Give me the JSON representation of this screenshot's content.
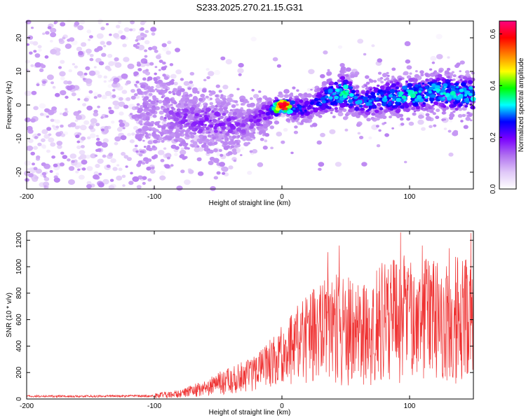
{
  "title": "S233.2025.270.21.15.G31",
  "chart_data": [
    {
      "type": "heatmap",
      "xlabel": "Height of straight line (km)",
      "ylabel": "Frequency (Hz)",
      "xlim": [
        -200,
        150
      ],
      "ylim": [
        -25,
        25
      ],
      "xticks": [
        -200,
        -100,
        0,
        100
      ],
      "yticks": [
        -20,
        -10,
        0,
        10,
        20
      ],
      "colorbar": {
        "label": "Normalized spectral amplitude",
        "range": [
          0,
          0.65
        ],
        "ticks": [
          0.0,
          0.2,
          0.4,
          0.6
        ],
        "colors": [
          "#ffffff",
          "#e0c8f8",
          "#b070f0",
          "#7a00ff",
          "#0000ff",
          "#00ffff",
          "#00ff00",
          "#ffff00",
          "#ff8000",
          "#ff0000",
          "#ff0080"
        ]
      },
      "ridge": {
        "points": [
          {
            "x": -200,
            "y": 3,
            "halfwidth": 25,
            "amp": 0.09
          },
          {
            "x": -150,
            "y": 2,
            "halfwidth": 25,
            "amp": 0.09
          },
          {
            "x": -100,
            "y": -1,
            "halfwidth": 14,
            "amp": 0.13
          },
          {
            "x": -80,
            "y": -4,
            "halfwidth": 9,
            "amp": 0.17
          },
          {
            "x": -50,
            "y": -5,
            "halfwidth": 8,
            "amp": 0.19
          },
          {
            "x": -30,
            "y": -6,
            "halfwidth": 6,
            "amp": 0.16
          },
          {
            "x": -10,
            "y": -2,
            "halfwidth": 5,
            "amp": 0.21
          },
          {
            "x": 0,
            "y": 0,
            "halfwidth": 2,
            "amp": 0.62
          },
          {
            "x": 10,
            "y": -1,
            "halfwidth": 4,
            "amp": 0.3
          },
          {
            "x": 20,
            "y": -1,
            "halfwidth": 4,
            "amp": 0.24
          },
          {
            "x": 40,
            "y": 3,
            "halfwidth": 6,
            "amp": 0.32
          },
          {
            "x": 50,
            "y": 4,
            "halfwidth": 6,
            "amp": 0.36
          },
          {
            "x": 60,
            "y": 1,
            "halfwidth": 5,
            "amp": 0.3
          },
          {
            "x": 80,
            "y": 2,
            "halfwidth": 6,
            "amp": 0.3
          },
          {
            "x": 100,
            "y": 3,
            "halfwidth": 6,
            "amp": 0.34
          },
          {
            "x": 120,
            "y": 4,
            "halfwidth": 6,
            "amp": 0.33
          },
          {
            "x": 150,
            "y": 3,
            "halfwidth": 6,
            "amp": 0.34
          }
        ],
        "peak": {
          "x": 1,
          "y": 0,
          "amp": 0.62
        }
      }
    },
    {
      "type": "line",
      "xlabel": "Height of straight line (km)",
      "ylabel": "SNR (10 * v/v)",
      "xlim": [
        -200,
        150
      ],
      "ylim": [
        0,
        1270
      ],
      "xticks": [
        -200,
        -100,
        0,
        100
      ],
      "yticks": [
        0,
        200,
        400,
        600,
        800,
        1000,
        1200
      ],
      "color": "#ef3333",
      "envelope": {
        "x": [
          -200,
          -150,
          -100,
          -80,
          -60,
          -40,
          -20,
          0,
          20,
          40,
          60,
          80,
          100,
          120,
          150
        ],
        "upper": [
          40,
          40,
          45,
          70,
          150,
          250,
          330,
          560,
          800,
          950,
          900,
          1050,
          1100,
          1050,
          1100
        ],
        "lower": [
          5,
          5,
          5,
          10,
          20,
          40,
          60,
          80,
          100,
          80,
          100,
          100,
          120,
          100,
          100
        ]
      },
      "peaks": [
        {
          "x": 93,
          "y": 1260
        },
        {
          "x": 148,
          "y": 1255
        },
        {
          "x": 110,
          "y": 1160
        },
        {
          "x": 45,
          "y": 1160
        },
        {
          "x": 36,
          "y": 1110
        },
        {
          "x": 131,
          "y": 1140
        }
      ]
    }
  ]
}
